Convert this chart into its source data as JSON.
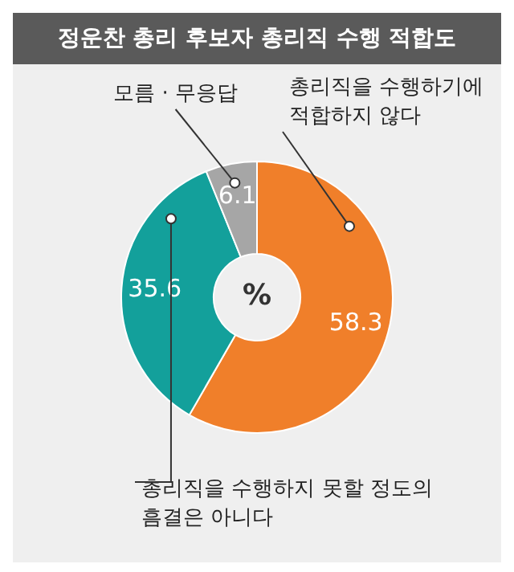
{
  "chart_data": {
    "type": "donut",
    "title": "정운찬 총리 후보자 총리직 수행 적합도",
    "categories": [
      "총리직을 수행하기에 적합하지 않다",
      "총리직을 수행하지 못할 정도의 흠결은 아니다",
      "모름 · 무응답"
    ],
    "values": [
      58.3,
      35.6,
      6.1
    ],
    "colors": [
      "#f07f2a",
      "#13a09b",
      "#a6a6a6"
    ],
    "data_labels": true,
    "legend": false,
    "annotations": [
      "%"
    ]
  }
}
